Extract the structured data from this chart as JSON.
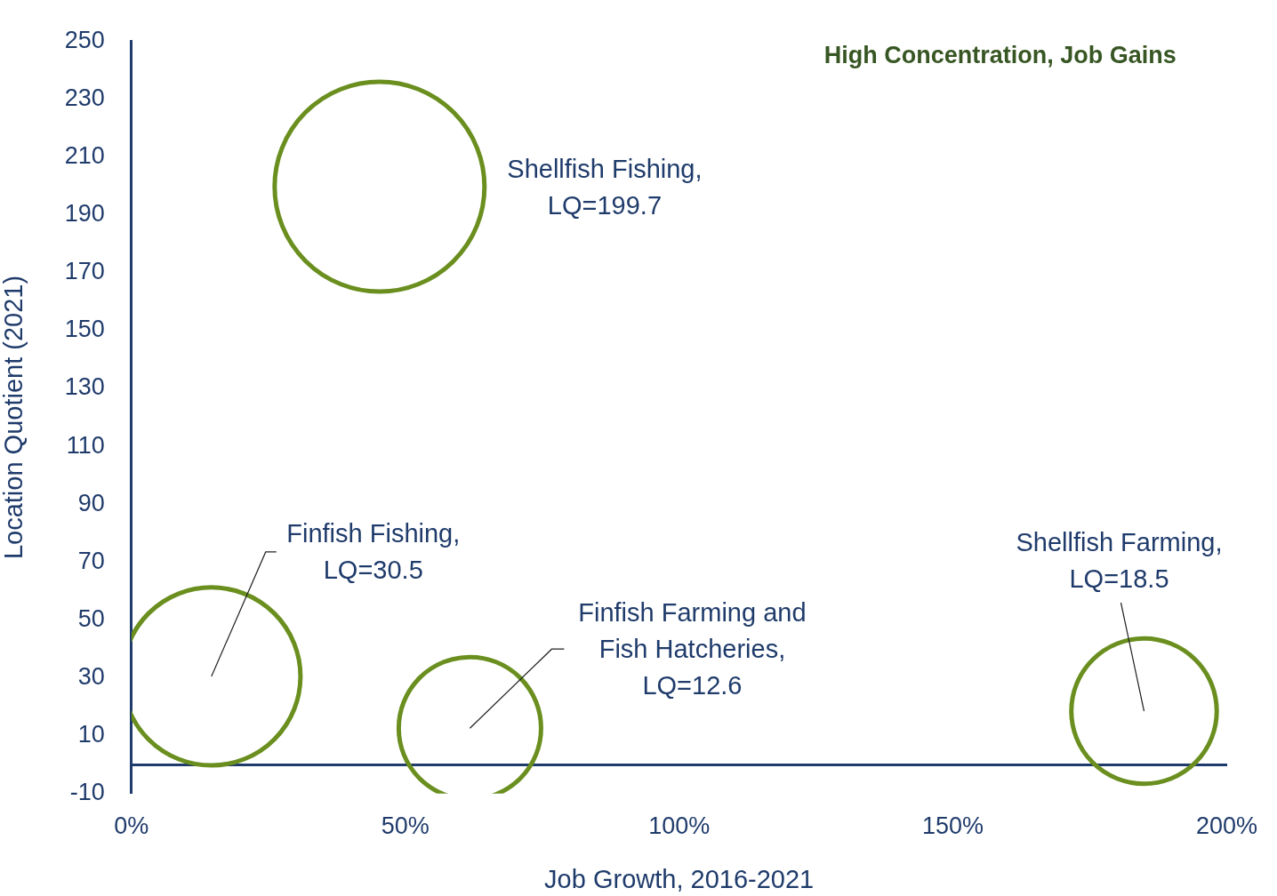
{
  "chart_data": {
    "type": "bubble",
    "xlabel": "Job Growth, 2016-2021",
    "ylabel": "Location Quotient (2021)",
    "x": [
      14.6,
      45.3,
      61.8,
      184.9
    ],
    "values": [
      30.5,
      199.7,
      12.6,
      18.5
    ],
    "sizes": [
      0.72,
      1,
      0.46,
      0.48
    ],
    "color": "#6a8f1f",
    "xlim": [
      0,
      200
    ],
    "xticks": [
      {
        "value": 0,
        "label": "0%"
      },
      {
        "value": 50,
        "label": "50%"
      },
      {
        "value": 100,
        "label": "100%"
      },
      {
        "value": 150,
        "label": "150%"
      },
      {
        "value": 200,
        "label": "200%"
      }
    ],
    "ylim": [
      -10,
      250
    ],
    "yticks": [
      -10,
      10,
      30,
      50,
      70,
      90,
      110,
      130,
      150,
      170,
      190,
      210,
      230,
      250
    ],
    "annotations": [
      {
        "text": "Finfish Fishing,\nLQ=30.5",
        "x": 14.6,
        "y": 30.5
      },
      "Shellfish Fishing,\nLQ=199.7",
      {
        "text": "Finfish Farming and\nFish Hatcheries,\nLQ=12.6",
        "x": 61.8,
        "y": 12.6
      },
      {
        "text": "Shellfish Farming,\nLQ=18.5",
        "x": 184.9,
        "y": 18.5
      },
      "High Concentration, Job Gains"
    ],
    "grid": false,
    "legend": false
  }
}
